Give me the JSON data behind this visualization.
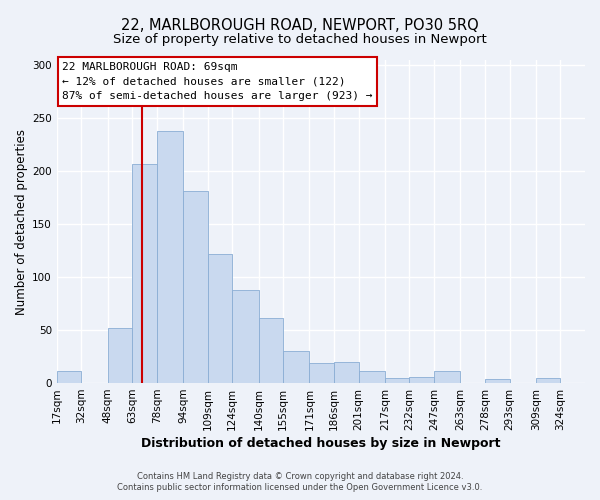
{
  "title": "22, MARLBOROUGH ROAD, NEWPORT, PO30 5RQ",
  "subtitle": "Size of property relative to detached houses in Newport",
  "xlabel": "Distribution of detached houses by size in Newport",
  "ylabel": "Number of detached properties",
  "bin_labels": [
    "17sqm",
    "32sqm",
    "48sqm",
    "63sqm",
    "78sqm",
    "94sqm",
    "109sqm",
    "124sqm",
    "140sqm",
    "155sqm",
    "171sqm",
    "186sqm",
    "201sqm",
    "217sqm",
    "232sqm",
    "247sqm",
    "263sqm",
    "278sqm",
    "293sqm",
    "309sqm",
    "324sqm"
  ],
  "bar_values": [
    11,
    0,
    52,
    207,
    238,
    181,
    122,
    88,
    61,
    30,
    19,
    20,
    11,
    5,
    6,
    11,
    0,
    4,
    0,
    5,
    0
  ],
  "bar_color": "#c9d9ef",
  "bar_edgecolor": "#8aadd4",
  "vline_x": 69,
  "bin_edges": [
    17,
    32,
    48,
    63,
    78,
    94,
    109,
    124,
    140,
    155,
    171,
    186,
    201,
    217,
    232,
    247,
    263,
    278,
    293,
    309,
    324,
    339
  ],
  "ylim": [
    0,
    305
  ],
  "yticks": [
    0,
    50,
    100,
    150,
    200,
    250,
    300
  ],
  "annotation_title": "22 MARLBOROUGH ROAD: 69sqm",
  "annotation_line1": "← 12% of detached houses are smaller (122)",
  "annotation_line2": "87% of semi-detached houses are larger (923) →",
  "vline_color": "#cc0000",
  "annotation_box_edgecolor": "#cc0000",
  "footer1": "Contains HM Land Registry data © Crown copyright and database right 2024.",
  "footer2": "Contains public sector information licensed under the Open Government Licence v3.0.",
  "background_color": "#eef2f9",
  "grid_color": "#ffffff",
  "title_fontsize": 10.5,
  "subtitle_fontsize": 9.5,
  "xlabel_fontsize": 9,
  "ylabel_fontsize": 8.5,
  "tick_fontsize": 7.5,
  "annotation_fontsize": 8,
  "footer_fontsize": 6
}
